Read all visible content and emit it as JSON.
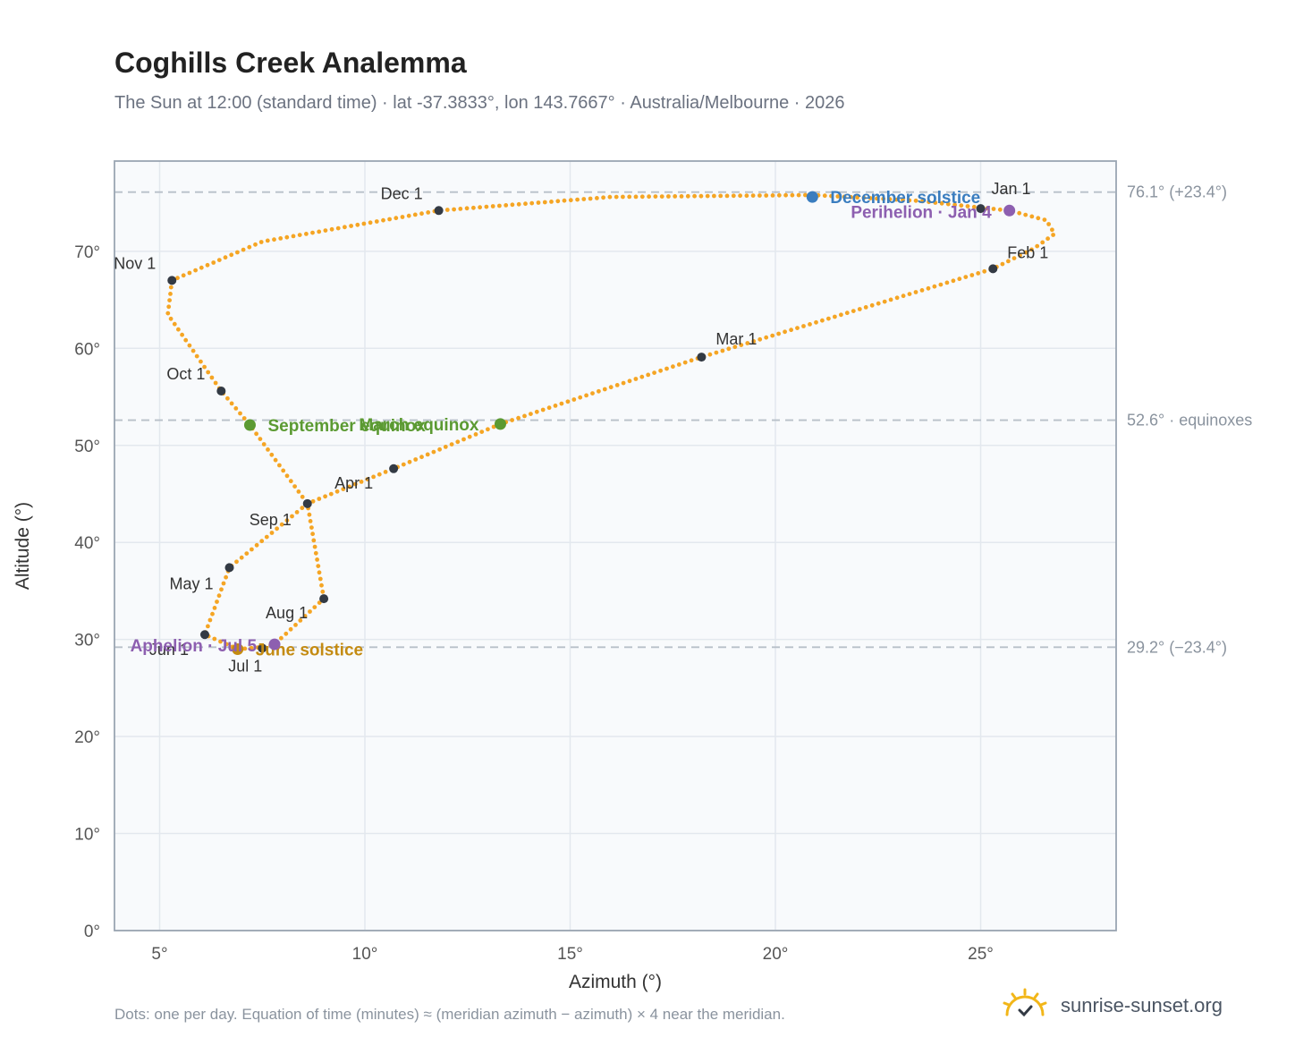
{
  "header": {
    "title": "Coghills Creek Analemma",
    "subtitle": "The Sun at 12:00 (standard time) · lat -37.3833°, lon 143.7667° · Australia/Melbourne · 2026"
  },
  "footer": {
    "note": "Dots: one per day. Equation of time (minutes) ≈ (meridian azimuth − azimuth) × 4 near the meridian.",
    "brand": "sunrise-sunset.org"
  },
  "colors": {
    "curve": "#f5a524",
    "month_marker": "#333a44",
    "equinox": "#5b9a32",
    "december_solstice": "#3a7dbf",
    "june_solstice": "#c48b12",
    "apsides": "#8d5fb0",
    "ref_line": "#b8c0c9",
    "plot_bg": "#f8fafc"
  },
  "chart_data": {
    "type": "scatter",
    "xlabel": "Azimuth (°)",
    "ylabel": "Altitude (°)",
    "xlim": [
      3.9,
      28.3
    ],
    "ylim": [
      0,
      79.3
    ],
    "xticks": [
      5,
      10,
      15,
      20,
      25
    ],
    "yticks": [
      0,
      10,
      20,
      30,
      40,
      50,
      60,
      70
    ],
    "grid": true,
    "path_keypoints": [
      {
        "x": 25.0,
        "y": 74.5
      },
      {
        "x": 25.7,
        "y": 74.2
      },
      {
        "x": 26.6,
        "y": 73.2
      },
      {
        "x": 26.8,
        "y": 71.8
      },
      {
        "x": 26.3,
        "y": 70.3
      },
      {
        "x": 25.3,
        "y": 68.2
      },
      {
        "x": 18.2,
        "y": 59.1
      },
      {
        "x": 13.3,
        "y": 52.2
      },
      {
        "x": 10.7,
        "y": 47.6
      },
      {
        "x": 8.6,
        "y": 44.0
      },
      {
        "x": 6.7,
        "y": 37.4
      },
      {
        "x": 6.1,
        "y": 30.5
      },
      {
        "x": 6.9,
        "y": 29.0
      },
      {
        "x": 7.5,
        "y": 29.2
      },
      {
        "x": 7.8,
        "y": 29.5
      },
      {
        "x": 9.0,
        "y": 34.2
      },
      {
        "x": 8.6,
        "y": 44.0
      },
      {
        "x": 7.2,
        "y": 52.1
      },
      {
        "x": 6.5,
        "y": 55.6
      },
      {
        "x": 5.2,
        "y": 63.5
      },
      {
        "x": 5.3,
        "y": 67.0
      },
      {
        "x": 7.5,
        "y": 71.0
      },
      {
        "x": 11.8,
        "y": 74.2
      },
      {
        "x": 16.0,
        "y": 75.6
      },
      {
        "x": 20.9,
        "y": 75.8
      },
      {
        "x": 23.5,
        "y": 75.2
      },
      {
        "x": 25.0,
        "y": 74.5
      }
    ],
    "month_markers": [
      {
        "label": "Jan 1",
        "x": 25.0,
        "y": 74.4
      },
      {
        "label": "Feb 1",
        "x": 25.3,
        "y": 68.2
      },
      {
        "label": "Mar 1",
        "x": 18.2,
        "y": 59.1
      },
      {
        "label": "Apr 1",
        "x": 10.7,
        "y": 47.6
      },
      {
        "label": "May 1",
        "x": 6.7,
        "y": 37.4
      },
      {
        "label": "Jun 1",
        "x": 6.1,
        "y": 30.5
      },
      {
        "label": "Jul 1",
        "x": 7.5,
        "y": 29.1
      },
      {
        "label": "Aug 1",
        "x": 9.0,
        "y": 34.2
      },
      {
        "label": "Sep 1",
        "x": 8.6,
        "y": 44.0
      },
      {
        "label": "Oct 1",
        "x": 6.5,
        "y": 55.6
      },
      {
        "label": "Nov 1",
        "x": 5.3,
        "y": 67.0
      },
      {
        "label": "Dec 1",
        "x": 11.8,
        "y": 74.2
      }
    ],
    "events": [
      {
        "label": "March equinox",
        "x": 13.3,
        "y": 52.2,
        "color_key": "equinox"
      },
      {
        "label": "September equinox",
        "x": 7.2,
        "y": 52.1,
        "color_key": "equinox"
      },
      {
        "label": "December solstice",
        "x": 20.9,
        "y": 75.6,
        "color_key": "december_solstice"
      },
      {
        "label": "June solstice",
        "x": 6.9,
        "y": 29.0,
        "color_key": "june_solstice"
      },
      {
        "label": "Perihelion · Jan 4",
        "x": 25.7,
        "y": 74.2,
        "color_key": "apsides"
      },
      {
        "label": "Aphelion · Jul 5",
        "x": 7.8,
        "y": 29.5,
        "color_key": "apsides"
      }
    ],
    "reference_lines": [
      {
        "y": 76.1,
        "label": "76.1° (+23.4°)"
      },
      {
        "y": 52.6,
        "label": "52.6° · equinoxes"
      },
      {
        "y": 29.2,
        "label": "29.2° (−23.4°)"
      }
    ]
  }
}
